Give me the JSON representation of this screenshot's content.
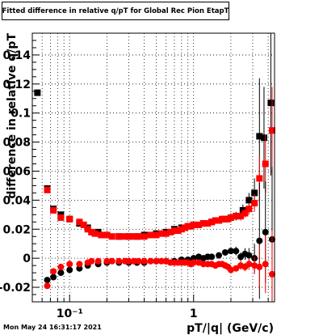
{
  "title": "Fitted difference in relative q/pT for Global Rec Pion EtapT",
  "timestamp": "Mon May 24 16:31:17 2021",
  "chart_data": {
    "type": "scatter",
    "title": "Fitted difference in relative q/pT for Global Rec Pion EtapT",
    "xlabel": "pT/|q| (GeV/c)",
    "ylabel": "difference in relative q/pT",
    "xscale": "log",
    "xlim": [
      0.05,
      4.5
    ],
    "ylim": [
      -0.03,
      0.155
    ],
    "grid": true,
    "x_tick_labels": [
      "10⁻¹",
      "1"
    ],
    "y_tick_labels": [
      "-0.02",
      "0",
      "0.02",
      "0.04",
      "0.06",
      "0.08",
      "0.1",
      "0.12",
      "0.14"
    ],
    "series": [
      {
        "marker": "square",
        "color": "#000000",
        "x": [
          0.055,
          0.066,
          0.074,
          0.085,
          0.1,
          0.12,
          0.14,
          0.17,
          0.2,
          0.25,
          0.3,
          0.35,
          0.4,
          0.5,
          0.6,
          0.7,
          0.8,
          0.9,
          1.0,
          1.2,
          1.4,
          1.6,
          1.8,
          2.0,
          2.2,
          2.5,
          2.8,
          3.1,
          3.4,
          3.7,
          4.2
        ],
        "y": [
          0.114,
          0.048,
          0.034,
          0.03,
          0.027,
          0.024,
          0.021,
          0.018,
          0.016,
          0.015,
          0.015,
          0.015,
          0.016,
          0.017,
          0.018,
          0.02,
          0.021,
          0.022,
          0.023,
          0.024,
          0.025,
          0.026,
          0.027,
          0.028,
          0.029,
          0.033,
          0.04,
          0.045,
          0.084,
          0.083,
          0.107
        ],
        "err": [
          0.002,
          0.002,
          0.002,
          0.001,
          0.001,
          0.001,
          0.001,
          0.001,
          0.001,
          0.001,
          0.001,
          0.001,
          0.001,
          0.001,
          0.001,
          0.001,
          0.001,
          0.001,
          0.001,
          0.001,
          0.002,
          0.002,
          0.002,
          0.003,
          0.003,
          0.004,
          0.005,
          0.01,
          0.04,
          0.035,
          0.05
        ]
      },
      {
        "marker": "square",
        "color": "#ff0000",
        "x": [
          0.066,
          0.074,
          0.085,
          0.1,
          0.12,
          0.13,
          0.14,
          0.15,
          0.16,
          0.18,
          0.2,
          0.22,
          0.25,
          0.28,
          0.3,
          0.33,
          0.36,
          0.4,
          0.45,
          0.5,
          0.55,
          0.6,
          0.65,
          0.7,
          0.75,
          0.8,
          0.85,
          0.9,
          0.95,
          1.0,
          1.1,
          1.2,
          1.3,
          1.4,
          1.5,
          1.6,
          1.7,
          1.8,
          1.9,
          2.0,
          2.2,
          2.4,
          2.6,
          2.8,
          3.1,
          3.4,
          3.8,
          4.3
        ],
        "y": [
          0.047,
          0.033,
          0.028,
          0.027,
          0.025,
          0.023,
          0.02,
          0.018,
          0.017,
          0.016,
          0.016,
          0.015,
          0.015,
          0.015,
          0.015,
          0.015,
          0.015,
          0.015,
          0.016,
          0.016,
          0.017,
          0.017,
          0.018,
          0.019,
          0.019,
          0.02,
          0.021,
          0.022,
          0.022,
          0.023,
          0.023,
          0.024,
          0.024,
          0.025,
          0.026,
          0.026,
          0.027,
          0.027,
          0.027,
          0.028,
          0.029,
          0.029,
          0.031,
          0.034,
          0.038,
          0.055,
          0.065,
          0.088
        ],
        "err": [
          0.002,
          0.002,
          0.001,
          0.001,
          0.001,
          0.001,
          0.001,
          0.001,
          0.001,
          0.001,
          0.001,
          0.001,
          0.001,
          0.001,
          0.001,
          0.001,
          0.001,
          0.001,
          0.001,
          0.001,
          0.001,
          0.001,
          0.001,
          0.001,
          0.001,
          0.001,
          0.001,
          0.001,
          0.001,
          0.001,
          0.001,
          0.001,
          0.001,
          0.001,
          0.001,
          0.001,
          0.001,
          0.002,
          0.002,
          0.002,
          0.002,
          0.003,
          0.003,
          0.004,
          0.006,
          0.015,
          0.02,
          0.03
        ]
      },
      {
        "marker": "circle",
        "color": "#000000",
        "x": [
          0.066,
          0.074,
          0.085,
          0.1,
          0.12,
          0.14,
          0.17,
          0.2,
          0.25,
          0.3,
          0.35,
          0.4,
          0.5,
          0.6,
          0.7,
          0.8,
          0.9,
          1.0,
          1.1,
          1.2,
          1.3,
          1.4,
          1.6,
          1.8,
          2.0,
          2.2,
          2.4,
          2.6,
          2.8,
          3.1,
          3.4,
          3.8,
          4.3
        ],
        "y": [
          -0.015,
          -0.013,
          -0.01,
          -0.008,
          -0.007,
          -0.005,
          -0.004,
          -0.003,
          -0.003,
          -0.003,
          -0.003,
          -0.003,
          -0.002,
          -0.002,
          -0.002,
          -0.001,
          -0.001,
          0.0,
          0.001,
          0.0,
          0.001,
          0.001,
          0.002,
          0.004,
          0.005,
          0.005,
          0.001,
          0.003,
          0.002,
          0.0,
          0.012,
          0.018,
          0.013
        ],
        "err": [
          0.002,
          0.002,
          0.001,
          0.001,
          0.001,
          0.001,
          0.001,
          0.001,
          0.001,
          0.001,
          0.001,
          0.001,
          0.001,
          0.001,
          0.001,
          0.001,
          0.001,
          0.001,
          0.001,
          0.001,
          0.001,
          0.001,
          0.002,
          0.002,
          0.002,
          0.003,
          0.003,
          0.004,
          0.005,
          0.01,
          0.04,
          0.035,
          0.05
        ]
      },
      {
        "marker": "circle",
        "color": "#ff0000",
        "x": [
          0.066,
          0.074,
          0.085,
          0.1,
          0.12,
          0.14,
          0.15,
          0.17,
          0.2,
          0.22,
          0.25,
          0.28,
          0.3,
          0.33,
          0.36,
          0.4,
          0.45,
          0.5,
          0.55,
          0.6,
          0.65,
          0.7,
          0.75,
          0.8,
          0.85,
          0.9,
          0.95,
          1.0,
          1.1,
          1.2,
          1.3,
          1.4,
          1.5,
          1.6,
          1.7,
          1.8,
          1.9,
          2.0,
          2.2,
          2.4,
          2.6,
          2.8,
          3.1,
          3.4,
          3.8,
          4.3
        ],
        "y": [
          -0.019,
          -0.009,
          -0.006,
          -0.004,
          -0.004,
          -0.003,
          -0.002,
          -0.002,
          -0.002,
          -0.002,
          -0.002,
          -0.002,
          -0.002,
          -0.002,
          -0.002,
          -0.002,
          -0.002,
          -0.002,
          -0.002,
          -0.002,
          -0.003,
          -0.003,
          -0.003,
          -0.003,
          -0.003,
          -0.003,
          -0.004,
          -0.003,
          -0.003,
          -0.004,
          -0.004,
          -0.004,
          -0.005,
          -0.004,
          -0.004,
          -0.005,
          -0.006,
          -0.008,
          -0.007,
          -0.005,
          -0.006,
          -0.004,
          -0.005,
          -0.006,
          -0.004,
          -0.011
        ],
        "err": [
          0.002,
          0.002,
          0.001,
          0.001,
          0.001,
          0.001,
          0.001,
          0.001,
          0.001,
          0.001,
          0.001,
          0.001,
          0.001,
          0.001,
          0.001,
          0.001,
          0.001,
          0.001,
          0.001,
          0.001,
          0.001,
          0.001,
          0.001,
          0.001,
          0.001,
          0.001,
          0.001,
          0.001,
          0.001,
          0.001,
          0.001,
          0.001,
          0.001,
          0.001,
          0.001,
          0.002,
          0.002,
          0.002,
          0.002,
          0.003,
          0.003,
          0.004,
          0.006,
          0.015,
          0.02,
          0.03
        ]
      }
    ]
  }
}
